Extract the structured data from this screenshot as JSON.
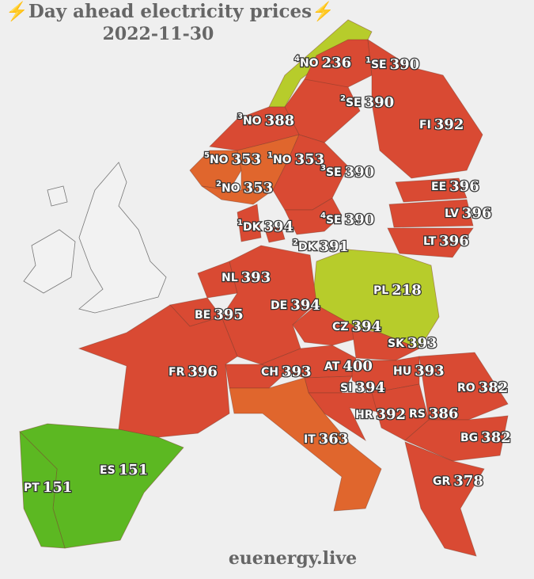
{
  "title": "⚡Day ahead electricity prices⚡",
  "date": "2022-11-30",
  "footer": "euenergy.live",
  "regions": [
    {
      "zone": "4",
      "code": "NO",
      "value": 236,
      "color": "#b7cc2b"
    },
    {
      "zone": "1",
      "code": "SE",
      "value": 390,
      "color": "#d94a33"
    },
    {
      "code": "FI",
      "value": 392,
      "color": "#d94a33"
    },
    {
      "zone": "2",
      "code": "SE",
      "value": 390,
      "color": "#d94a33"
    },
    {
      "zone": "3",
      "code": "NO",
      "value": 388,
      "color": "#d94a33"
    },
    {
      "zone": "5",
      "code": "NO",
      "value": 353,
      "color": "#e0662d"
    },
    {
      "zone": "1",
      "code": "NO",
      "value": 353,
      "color": "#e0662d"
    },
    {
      "zone": "2",
      "code": "NO",
      "value": 353,
      "color": "#e0662d"
    },
    {
      "zone": "3",
      "code": "SE",
      "value": 390,
      "color": "#d94a33"
    },
    {
      "zone": "4",
      "code": "SE",
      "value": 390,
      "color": "#d94a33"
    },
    {
      "zone": "1",
      "code": "DK",
      "value": 394,
      "color": "#d94a33"
    },
    {
      "zone": "2",
      "code": "DK",
      "value": 391,
      "color": "#d94a33"
    },
    {
      "code": "EE",
      "value": 396,
      "color": "#d94a33"
    },
    {
      "code": "LV",
      "value": 396,
      "color": "#d94a33"
    },
    {
      "code": "LT",
      "value": 396,
      "color": "#d94a33"
    },
    {
      "code": "PL",
      "value": 218,
      "color": "#b7cc2b"
    },
    {
      "code": "NL",
      "value": 393,
      "color": "#d94a33"
    },
    {
      "code": "BE",
      "value": 395,
      "color": "#d94a33"
    },
    {
      "code": "DE",
      "value": 394,
      "color": "#d94a33"
    },
    {
      "code": "CZ",
      "value": 394,
      "color": "#d94a33"
    },
    {
      "code": "SK",
      "value": 393,
      "color": "#d94a33"
    },
    {
      "code": "AT",
      "value": 400,
      "color": "#d94a33"
    },
    {
      "code": "HU",
      "value": 393,
      "color": "#d94a33"
    },
    {
      "code": "SI",
      "value": 394,
      "color": "#d94a33"
    },
    {
      "code": "HR",
      "value": 392,
      "color": "#d94a33"
    },
    {
      "code": "RS",
      "value": 386,
      "color": "#d94a33"
    },
    {
      "code": "RO",
      "value": 382,
      "color": "#d94a33"
    },
    {
      "code": "BG",
      "value": 382,
      "color": "#d94a33"
    },
    {
      "code": "GR",
      "value": 378,
      "color": "#d94a33"
    },
    {
      "code": "CH",
      "value": 393,
      "color": "#d94a33"
    },
    {
      "code": "IT",
      "value": 363,
      "color": "#e0662d"
    },
    {
      "code": "FR",
      "value": 396,
      "color": "#d94a33"
    },
    {
      "code": "ES",
      "value": 151,
      "color": "#5cb822"
    },
    {
      "code": "PT",
      "value": 151,
      "color": "#5cb822"
    }
  ]
}
